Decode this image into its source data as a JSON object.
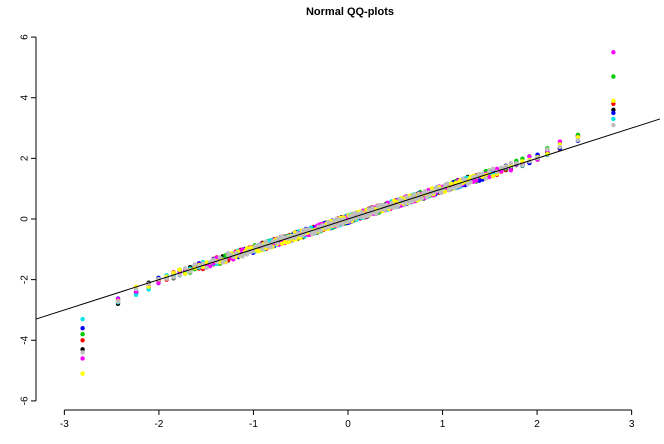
{
  "chart_data": {
    "type": "scatter",
    "title": "Normal QQ-plots",
    "xlabel": "",
    "ylabel": "",
    "xlim": [
      -3.3,
      3.3
    ],
    "ylim": [
      -6.3,
      6.3
    ],
    "x_ticks": [
      -3,
      -2,
      -1,
      0,
      1,
      2,
      3
    ],
    "y_ticks": [
      -6,
      -4,
      -2,
      0,
      2,
      4,
      6
    ],
    "x_tick_labels": [
      "-3",
      "-2",
      "-1",
      "0",
      "1",
      "2",
      "3"
    ],
    "y_tick_labels": [
      "-6",
      "-4",
      "-2",
      "0",
      "2",
      "4",
      "6"
    ],
    "grid": false,
    "legend": "none",
    "reference_line": {
      "x": [
        -3.3,
        3.3
      ],
      "y": [
        -3.3,
        3.3
      ]
    },
    "point_count_per_series": 200,
    "series": [
      {
        "color": "#000000",
        "lower_tail_scale": 1.3,
        "upper_tail_scale": 1.1,
        "lower_peak": -4.3,
        "upper_peak": 3.6
      },
      {
        "color": "#ff0000",
        "lower_tail_scale": 1.0,
        "upper_tail_scale": 1.15,
        "lower_peak": -4.0,
        "upper_peak": 3.8
      },
      {
        "color": "#00cc00",
        "lower_tail_scale": 0.75,
        "upper_tail_scale": 1.25,
        "lower_peak": -3.8,
        "upper_peak": 4.7
      },
      {
        "color": "#0000ff",
        "lower_tail_scale": 0.95,
        "upper_tail_scale": 1.0,
        "lower_peak": -3.6,
        "upper_peak": 3.5
      },
      {
        "color": "#00e5e5",
        "lower_tail_scale": 1.05,
        "upper_tail_scale": 1.0,
        "lower_peak": -3.3,
        "upper_peak": 3.3
      },
      {
        "color": "#ff00ff",
        "lower_tail_scale": 1.15,
        "upper_tail_scale": 1.35,
        "lower_peak": -4.6,
        "upper_peak": 5.5
      },
      {
        "color": "#ffff00",
        "lower_tail_scale": 0.7,
        "upper_tail_scale": 0.8,
        "lower_peak": -5.1,
        "upper_peak": 3.9
      },
      {
        "color": "#bebebe",
        "lower_tail_scale": 1.0,
        "upper_tail_scale": 1.05,
        "lower_peak": -4.4,
        "upper_peak": 3.1
      }
    ]
  }
}
